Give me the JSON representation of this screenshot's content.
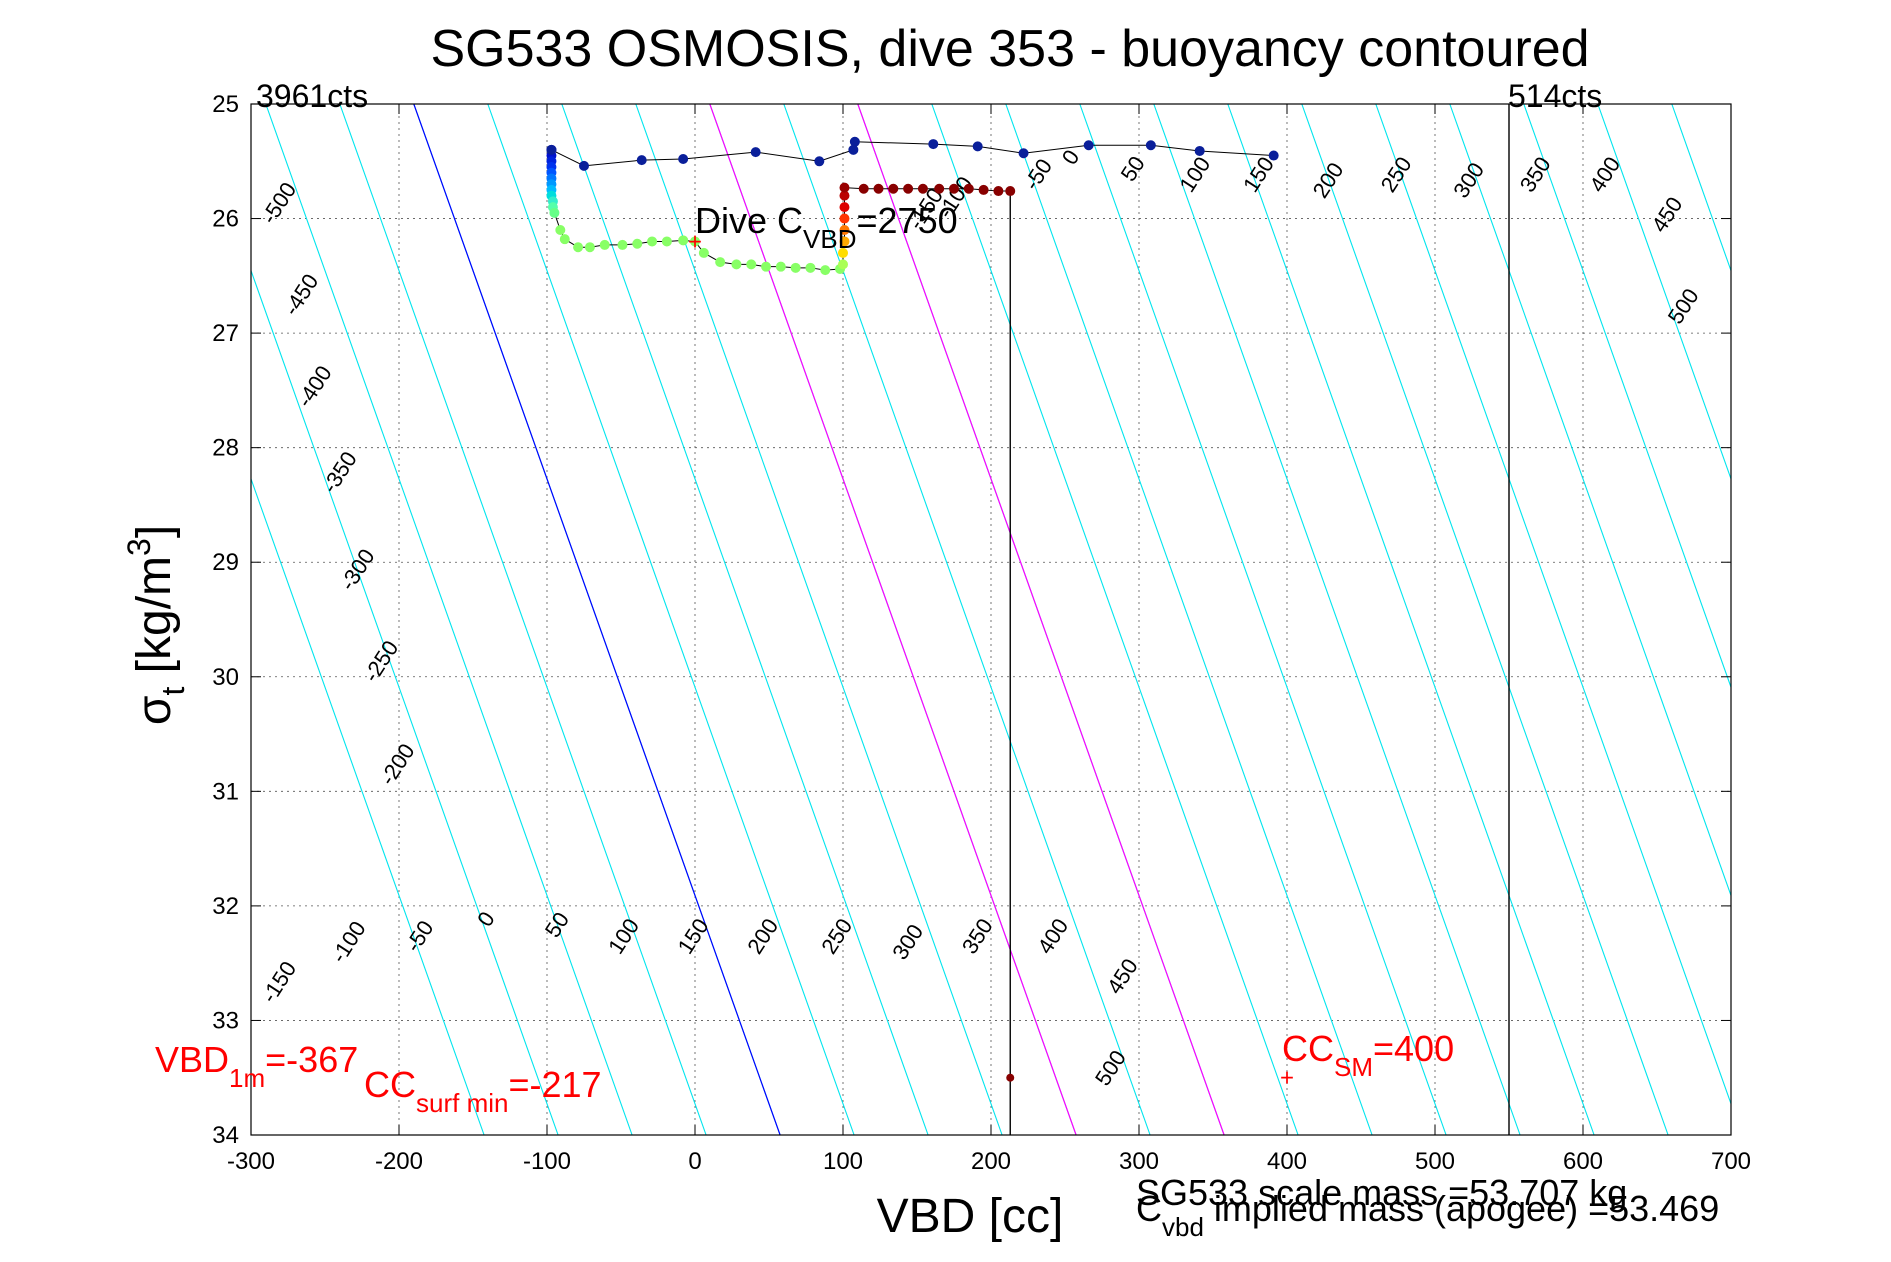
{
  "chart_data": {
    "type": "scatter",
    "title": "SG533 OSMOSIS, dive 353 - buoyancy contoured",
    "xlabel": "VBD [cc]",
    "ylabel": {
      "main": "σ",
      "sub": "t",
      "rest": " [kg/m",
      "sup": "3",
      "end": "]"
    },
    "xlim": [
      -300,
      700
    ],
    "ylim": [
      25,
      34
    ],
    "y_reversed": true,
    "grid": true,
    "x_ticks": [
      -300,
      -200,
      -100,
      0,
      100,
      200,
      300,
      400,
      500,
      600,
      700
    ],
    "x_tick_labels": [
      "-300",
      "-200",
      "-100",
      "0",
      "100",
      "200",
      "300",
      "400",
      "500",
      "600",
      "700"
    ],
    "y_ticks": [
      25,
      26,
      27,
      28,
      29,
      30,
      31,
      32,
      33,
      34
    ],
    "y_tick_labels": [
      "25",
      "26",
      "27",
      "28",
      "29",
      "30",
      "31",
      "32",
      "33",
      "34"
    ],
    "colors": {
      "contour": "#00e5ee",
      "neutral_line": "#0000ff",
      "magenta_line": "#ff00ff",
      "limit_line": "#000000",
      "annotation": "#ff0000",
      "path_line": "#000000"
    },
    "contour_lines": {
      "slope_vbd_per_sigma": 27.5,
      "base_vbd": [
        -390,
        -340,
        -290,
        -240,
        -190,
        -140,
        -90,
        -40,
        10,
        60,
        110,
        160,
        210,
        260,
        310,
        360,
        410,
        460,
        510,
        560,
        610,
        660
      ],
      "neutral_base_vbd": -190,
      "magenta_base_vbd": [
        10,
        110
      ]
    },
    "contour_labels_top": [
      {
        "text": "-500",
        "x": -277,
        "y": 25.9
      },
      {
        "text": "-450",
        "x": -262,
        "y": 26.7
      },
      {
        "text": "-400",
        "x": -253,
        "y": 27.5
      },
      {
        "text": "-350",
        "x": -236,
        "y": 28.25
      },
      {
        "text": "-300",
        "x": -224,
        "y": 29.1
      },
      {
        "text": "-250",
        "x": -208,
        "y": 29.9
      },
      {
        "text": "-200",
        "x": -197,
        "y": 30.8
      },
      {
        "text": "-150",
        "x": 160,
        "y": 25.95
      },
      {
        "text": "-100",
        "x": 180,
        "y": 25.85
      },
      {
        "text": "-50",
        "x": 236,
        "y": 25.65
      },
      {
        "text": "0",
        "x": 258,
        "y": 25.5
      },
      {
        "text": "50",
        "x": 300,
        "y": 25.6
      },
      {
        "text": "100",
        "x": 342,
        "y": 25.65
      },
      {
        "text": "150",
        "x": 385,
        "y": 25.65
      },
      {
        "text": "200",
        "x": 432,
        "y": 25.7
      },
      {
        "text": "250",
        "x": 478,
        "y": 25.65
      },
      {
        "text": "300",
        "x": 527,
        "y": 25.7
      },
      {
        "text": "350",
        "x": 572,
        "y": 25.65
      },
      {
        "text": "400",
        "x": 619,
        "y": 25.65
      },
      {
        "text": "450",
        "x": 661,
        "y": 26.0
      },
      {
        "text": "500",
        "x": 672,
        "y": 26.8
      }
    ],
    "contour_labels_bottom": [
      {
        "text": "-150",
        "x": -277,
        "y": 32.7
      },
      {
        "text": "-100",
        "x": -230,
        "y": 32.35
      },
      {
        "text": "-50",
        "x": -182,
        "y": 32.3
      },
      {
        "text": "0",
        "x": -137,
        "y": 32.15
      },
      {
        "text": "50",
        "x": -89,
        "y": 32.2
      },
      {
        "text": "100",
        "x": -44,
        "y": 32.3
      },
      {
        "text": "150",
        "x": 3,
        "y": 32.3
      },
      {
        "text": "200",
        "x": 50,
        "y": 32.3
      },
      {
        "text": "250",
        "x": 100,
        "y": 32.3
      },
      {
        "text": "300",
        "x": 148,
        "y": 32.35
      },
      {
        "text": "350",
        "x": 195,
        "y": 32.3
      },
      {
        "text": "400",
        "x": 246,
        "y": 32.3
      },
      {
        "text": "450",
        "x": 293,
        "y": 32.65
      },
      {
        "text": "500",
        "x": 285,
        "y": 33.45
      }
    ],
    "series": [
      {
        "name": "",
        "points": [
          [
            -97,
            25.4
          ],
          [
            -97,
            25.45
          ],
          [
            -97,
            25.5
          ],
          [
            -97,
            25.55
          ],
          [
            -97,
            25.6
          ],
          [
            -97,
            25.65
          ],
          [
            -97,
            25.7
          ],
          [
            -97,
            25.75
          ],
          [
            -97,
            25.8
          ],
          [
            -96,
            25.85
          ],
          [
            -96,
            25.9
          ],
          [
            -95,
            25.95
          ],
          [
            -91,
            26.1
          ],
          [
            -88,
            26.18
          ],
          [
            -79,
            26.25
          ],
          [
            -71,
            26.25
          ],
          [
            -61,
            26.23
          ],
          [
            -49,
            26.23
          ],
          [
            -39,
            26.22
          ],
          [
            -29,
            26.2
          ],
          [
            -19,
            26.2
          ],
          [
            -8,
            26.19
          ],
          [
            0,
            26.2
          ],
          [
            6,
            26.3
          ],
          [
            17,
            26.38
          ],
          [
            28,
            26.4
          ],
          [
            38,
            26.4
          ],
          [
            48,
            26.42
          ],
          [
            58,
            26.42
          ],
          [
            68,
            26.43
          ],
          [
            78,
            26.43
          ],
          [
            88,
            26.45
          ],
          [
            98,
            26.44
          ],
          [
            100,
            26.4
          ],
          [
            100,
            26.3
          ],
          [
            101,
            26.2
          ],
          [
            101,
            26.1
          ],
          [
            101,
            26.0
          ],
          [
            101,
            25.9
          ],
          [
            101,
            25.8
          ],
          [
            101,
            25.73
          ],
          [
            114,
            25.74
          ],
          [
            124,
            25.74
          ],
          [
            134,
            25.74
          ],
          [
            144,
            25.74
          ],
          [
            154,
            25.74
          ],
          [
            165,
            25.74
          ],
          [
            175,
            25.74
          ],
          [
            185,
            25.74
          ],
          [
            195,
            25.75
          ],
          [
            205,
            25.76
          ],
          [
            213,
            25.76
          ]
        ],
        "colors": [
          "#0000bb",
          "#0011cc",
          "#0022dd",
          "#0033ee",
          "#0055ff",
          "#0077ff",
          "#0099ff",
          "#00bbff",
          "#00dddd",
          "#33eecc",
          "#55ffaa",
          "#66ff88",
          "#88ff66",
          "#88ff66",
          "#88ff66",
          "#88ff66",
          "#88ff66",
          "#88ff66",
          "#88ff66",
          "#88ff66",
          "#88ff66",
          "#88ff66",
          "#88ff66",
          "#88ff66",
          "#88ff66",
          "#88ff66",
          "#88ff66",
          "#88ff66",
          "#88ff66",
          "#88ff66",
          "#88ff66",
          "#88ff66",
          "#88ff66",
          "#aaff55",
          "#ffdd00",
          "#ffaa00",
          "#ff7700",
          "#ff3300",
          "#dd0000",
          "#bb0000",
          "#990000",
          "#880000",
          "#880000",
          "#880000",
          "#880000",
          "#880000",
          "#880000",
          "#880000",
          "#880000",
          "#880000",
          "#880000",
          "#880000"
        ]
      },
      {
        "name": "",
        "points": [
          [
            -97,
            25.4
          ],
          [
            -75,
            25.54
          ],
          [
            -36,
            25.49
          ],
          [
            -8,
            25.48
          ],
          [
            41,
            25.42
          ],
          [
            84,
            25.5
          ],
          [
            107,
            25.4
          ],
          [
            108,
            25.33
          ],
          [
            161,
            25.35
          ],
          [
            191,
            25.37
          ],
          [
            222,
            25.43
          ],
          [
            266,
            25.36
          ],
          [
            308,
            25.36
          ],
          [
            341,
            25.41
          ],
          [
            391,
            25.45
          ]
        ],
        "color": "#0a1f9a"
      }
    ],
    "extra_points": [
      {
        "x": 213,
        "y": 33.5,
        "color": "#880000"
      }
    ],
    "vertical_lines": [
      {
        "x": 213,
        "from_y": 25.76,
        "to_y": 34,
        "color": "#000000"
      },
      {
        "x": 550,
        "from_y": 25,
        "to_y": 34,
        "color": "#000000"
      }
    ],
    "markers": [
      {
        "x": 0,
        "y": 26.2,
        "color": "#ff0000",
        "symbol": "+"
      },
      {
        "x": 400,
        "y": 33.5,
        "color": "#ff0000",
        "symbol": "+"
      }
    ],
    "annotations": {
      "cts_left": "3961cts",
      "cts_right": "514cts",
      "dive_c_main": "Dive C",
      "dive_c_sub": "VBD",
      "dive_c_rest": "=2750",
      "vbd1m_main": "VBD",
      "vbd1m_sub": "1m",
      "vbd1m_rest": "=-367",
      "ccsurf_main": "CC",
      "ccsurf_sub": "surf min",
      "ccsurf_rest": "=-217",
      "ccsm_main": "CC",
      "ccsm_sub": "SM",
      "ccsm_rest": "=400",
      "scale_mass": "SG533 scale mass =53.707 kg",
      "implied_main": "C",
      "implied_sub": "vbd",
      "implied_rest": " implied mass (apogee) =53.469"
    }
  }
}
